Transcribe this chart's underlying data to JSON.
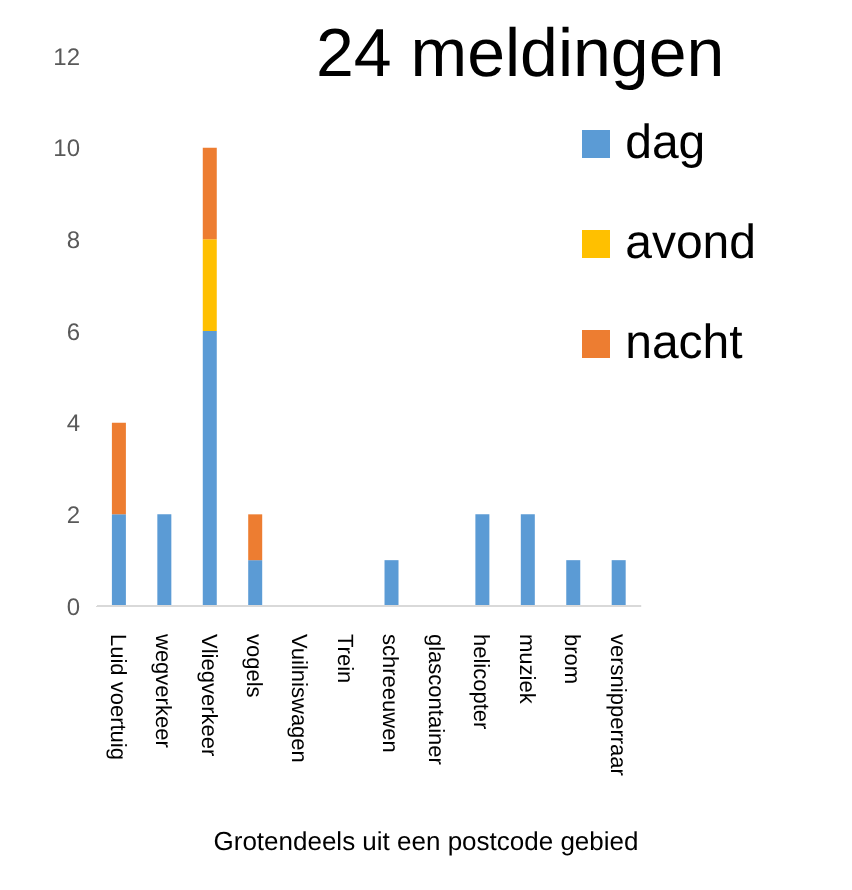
{
  "chart_data": {
    "type": "bar",
    "title": "24 meldingen",
    "stacked": true,
    "categories": [
      "Luid voertuig",
      "wegverkeer",
      "Vliegverkeer",
      "vogels",
      "Vuilniswagen",
      "Trein",
      "schreeuwen",
      "glascontainer",
      "helicopter",
      "muziek",
      "brom",
      "versnipperraar"
    ],
    "series": [
      {
        "name": "dag",
        "color": "#5b9bd5",
        "values": [
          2,
          2,
          6,
          1,
          0,
          0,
          1,
          0,
          2,
          2,
          1,
          1
        ]
      },
      {
        "name": "avond",
        "color": "#ffc000",
        "values": [
          0,
          0,
          2,
          0,
          0,
          0,
          0,
          0,
          0,
          0,
          0,
          0
        ]
      },
      {
        "name": "nacht",
        "color": "#ed7d31",
        "values": [
          2,
          0,
          2,
          1,
          0,
          0,
          0,
          0,
          0,
          0,
          0,
          0
        ]
      }
    ],
    "ylim": [
      0,
      12
    ],
    "yticks": [
      0,
      2,
      4,
      6,
      8,
      10,
      12
    ],
    "grid": false,
    "legend": "top right",
    "annotations": [
      "Grotendeels uit een postcode gebied"
    ]
  }
}
